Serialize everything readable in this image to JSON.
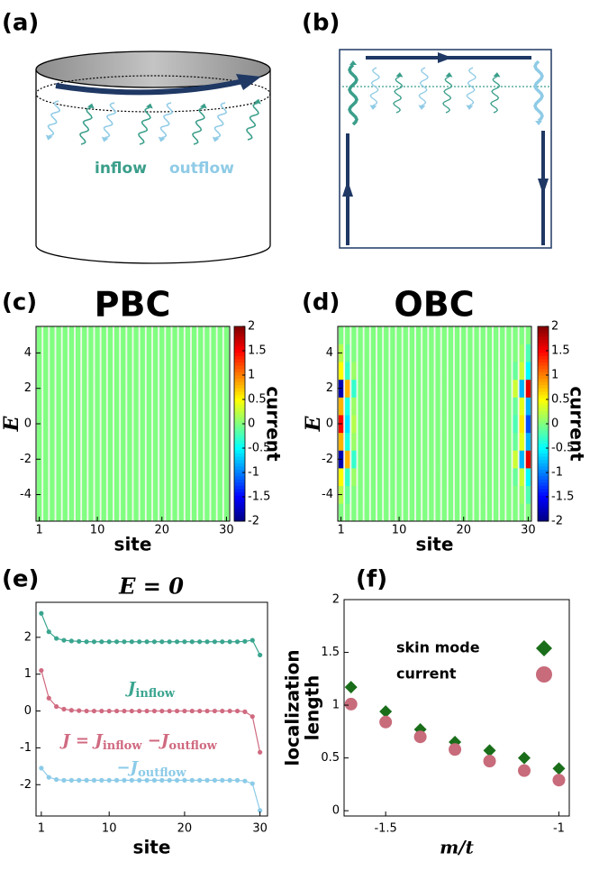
{
  "diagrams": {
    "a": {
      "panel_label": "(a)",
      "inflow": "inflow",
      "outflow": "outflow"
    },
    "b": {
      "panel_label": "(b)"
    }
  },
  "chart_data": [
    {
      "type": "heatmap",
      "panel_label": "(c)",
      "title": "PBC",
      "xlabel": "site",
      "ylabel": "E",
      "colorbar_label": "current",
      "colormap": "jet",
      "x": [
        1,
        2,
        3,
        4,
        5,
        6,
        7,
        8,
        9,
        10,
        11,
        12,
        13,
        14,
        15,
        16,
        17,
        18,
        19,
        20,
        21,
        22,
        23,
        24,
        25,
        26,
        27,
        28,
        29,
        30
      ],
      "y": [
        -5,
        -4,
        -3,
        -2,
        -1,
        0,
        1,
        2,
        3,
        4,
        5
      ],
      "z": [
        [
          0,
          0,
          0,
          0,
          0,
          0,
          0,
          0,
          0,
          0,
          0,
          0,
          0,
          0,
          0,
          0,
          0,
          0,
          0,
          0,
          0,
          0,
          0,
          0,
          0,
          0,
          0,
          0,
          0,
          0
        ],
        [
          0,
          0,
          0,
          0,
          0,
          0,
          0,
          0,
          0,
          0,
          0,
          0,
          0,
          0,
          0,
          0,
          0,
          0,
          0,
          0,
          0,
          0,
          0,
          0,
          0,
          0,
          0,
          0,
          0,
          0
        ],
        [
          0,
          0,
          0,
          0,
          0,
          0,
          0,
          0,
          0,
          0,
          0,
          0,
          0,
          0,
          0,
          0,
          0,
          0,
          0,
          0,
          0,
          0,
          0,
          0,
          0,
          0,
          0,
          0,
          0,
          0
        ],
        [
          0,
          0,
          0,
          0,
          0,
          0,
          0,
          0,
          0,
          0,
          0,
          0,
          0,
          0,
          0,
          0,
          0,
          0,
          0,
          0,
          0,
          0,
          0,
          0,
          0,
          0,
          0,
          0,
          0,
          0
        ],
        [
          0,
          0,
          0,
          0,
          0,
          0,
          0,
          0,
          0,
          0,
          0,
          0,
          0,
          0,
          0,
          0,
          0,
          0,
          0,
          0,
          0,
          0,
          0,
          0,
          0,
          0,
          0,
          0,
          0,
          0
        ],
        [
          0,
          0,
          0,
          0,
          0,
          0,
          0,
          0,
          0,
          0,
          0,
          0,
          0,
          0,
          0,
          0,
          0,
          0,
          0,
          0,
          0,
          0,
          0,
          0,
          0,
          0,
          0,
          0,
          0,
          0
        ],
        [
          0,
          0,
          0,
          0,
          0,
          0,
          0,
          0,
          0,
          0,
          0,
          0,
          0,
          0,
          0,
          0,
          0,
          0,
          0,
          0,
          0,
          0,
          0,
          0,
          0,
          0,
          0,
          0,
          0,
          0
        ],
        [
          0,
          0,
          0,
          0,
          0,
          0,
          0,
          0,
          0,
          0,
          0,
          0,
          0,
          0,
          0,
          0,
          0,
          0,
          0,
          0,
          0,
          0,
          0,
          0,
          0,
          0,
          0,
          0,
          0,
          0
        ],
        [
          0,
          0,
          0,
          0,
          0,
          0,
          0,
          0,
          0,
          0,
          0,
          0,
          0,
          0,
          0,
          0,
          0,
          0,
          0,
          0,
          0,
          0,
          0,
          0,
          0,
          0,
          0,
          0,
          0,
          0
        ],
        [
          0,
          0,
          0,
          0,
          0,
          0,
          0,
          0,
          0,
          0,
          0,
          0,
          0,
          0,
          0,
          0,
          0,
          0,
          0,
          0,
          0,
          0,
          0,
          0,
          0,
          0,
          0,
          0,
          0,
          0
        ],
        [
          0,
          0,
          0,
          0,
          0,
          0,
          0,
          0,
          0,
          0,
          0,
          0,
          0,
          0,
          0,
          0,
          0,
          0,
          0,
          0,
          0,
          0,
          0,
          0,
          0,
          0,
          0,
          0,
          0,
          0
        ]
      ],
      "zlim": [
        -2,
        2
      ],
      "zticks": [
        2,
        1.5,
        1,
        0.5,
        0,
        -0.5,
        -1,
        -1.5,
        -2
      ],
      "xlim": [
        0.5,
        30.5
      ],
      "ylim": [
        -5.5,
        5.5
      ],
      "xticks": [
        1,
        10,
        20,
        30
      ],
      "yticks": [
        -4,
        -2,
        0,
        2,
        4
      ]
    },
    {
      "type": "heatmap",
      "panel_label": "(d)",
      "title": "OBC",
      "xlabel": "site",
      "ylabel": "E",
      "colorbar_label": "current",
      "colormap": "jet",
      "x": [
        1,
        2,
        3,
        4,
        5,
        6,
        7,
        8,
        9,
        10,
        11,
        12,
        13,
        14,
        15,
        16,
        17,
        18,
        19,
        20,
        21,
        22,
        23,
        24,
        25,
        26,
        27,
        28,
        29,
        30
      ],
      "y": [
        -5,
        -4,
        -3,
        -2,
        -1,
        0,
        1,
        2,
        3,
        4,
        5
      ],
      "z": [
        [
          0,
          0,
          0,
          0,
          0,
          0,
          0,
          0,
          0,
          0,
          0,
          0,
          0,
          0,
          0,
          0,
          0,
          0,
          0,
          0,
          0,
          0,
          0,
          0,
          0,
          0,
          0,
          0,
          0,
          0
        ],
        [
          0.2,
          -0.1,
          0,
          0,
          0,
          0,
          0,
          0,
          0,
          0,
          0,
          0,
          0,
          0,
          0,
          0,
          0,
          0,
          0,
          0,
          0,
          0,
          0,
          0,
          0,
          0,
          0,
          0,
          0.1,
          -0.2
        ],
        [
          0.5,
          -0.3,
          0.1,
          0,
          0,
          0,
          0,
          0,
          0,
          0,
          0,
          0,
          0,
          0,
          0,
          0,
          0,
          0,
          0,
          0,
          0,
          0,
          0,
          0,
          0,
          0,
          0,
          -0.1,
          0.3,
          -0.5
        ],
        [
          -1.8,
          0.8,
          -0.3,
          0,
          0,
          0,
          0,
          0,
          0,
          0,
          0,
          0,
          0,
          0,
          0,
          0,
          0,
          0,
          0,
          0,
          0,
          0,
          0,
          0,
          0,
          0,
          0,
          0.3,
          -0.8,
          1.6
        ],
        [
          0.8,
          -0.4,
          0.1,
          0,
          0,
          0,
          0,
          0,
          0,
          0,
          0,
          0,
          0,
          0,
          0,
          0,
          0,
          0,
          0,
          0,
          0,
          0,
          0,
          0,
          0,
          0,
          0,
          -0.1,
          0.4,
          -0.8
        ],
        [
          1.5,
          -0.6,
          0.2,
          0,
          0,
          0,
          0,
          0,
          0,
          0,
          0,
          0,
          0,
          0,
          0,
          0,
          0,
          0,
          0,
          0,
          0,
          0,
          0,
          0,
          0,
          0,
          0,
          -0.2,
          0.6,
          -1.2
        ],
        [
          0.8,
          -0.4,
          0.1,
          0,
          0,
          0,
          0,
          0,
          0,
          0,
          0,
          0,
          0,
          0,
          0,
          0,
          0,
          0,
          0,
          0,
          0,
          0,
          0,
          0,
          0,
          0,
          0,
          -0.1,
          0.4,
          -0.8
        ],
        [
          -1.8,
          0.8,
          -0.3,
          0,
          0,
          0,
          0,
          0,
          0,
          0,
          0,
          0,
          0,
          0,
          0,
          0,
          0,
          0,
          0,
          0,
          0,
          0,
          0,
          0,
          0,
          0,
          0,
          0.3,
          -0.8,
          1.6
        ],
        [
          0.5,
          -0.3,
          0.1,
          0,
          0,
          0,
          0,
          0,
          0,
          0,
          0,
          0,
          0,
          0,
          0,
          0,
          0,
          0,
          0,
          0,
          0,
          0,
          0,
          0,
          0,
          0,
          0,
          -0.1,
          0.3,
          -0.5
        ],
        [
          0.2,
          -0.1,
          0,
          0,
          0,
          0,
          0,
          0,
          0,
          0,
          0,
          0,
          0,
          0,
          0,
          0,
          0,
          0,
          0,
          0,
          0,
          0,
          0,
          0,
          0,
          0,
          0,
          0,
          0.1,
          -0.2
        ],
        [
          0,
          0,
          0,
          0,
          0,
          0,
          0,
          0,
          0,
          0,
          0,
          0,
          0,
          0,
          0,
          0,
          0,
          0,
          0,
          0,
          0,
          0,
          0,
          0,
          0,
          0,
          0,
          0,
          0,
          0
        ]
      ],
      "zlim": [
        -2,
        2
      ],
      "zticks": [
        2,
        1.5,
        1,
        0.5,
        0,
        -0.5,
        -1,
        -1.5,
        -2
      ],
      "xlim": [
        0.5,
        30.5
      ],
      "ylim": [
        -5.5,
        5.5
      ],
      "xticks": [
        1,
        10,
        20,
        30
      ],
      "yticks": [
        -4,
        -2,
        0,
        2,
        4
      ]
    },
    {
      "type": "line",
      "panel_label": "(e)",
      "title": "E = 0",
      "xlabel": "site",
      "x": [
        1,
        2,
        3,
        4,
        5,
        6,
        7,
        8,
        9,
        10,
        11,
        12,
        13,
        14,
        15,
        16,
        17,
        18,
        19,
        20,
        21,
        22,
        23,
        24,
        25,
        26,
        27,
        28,
        29,
        30
      ],
      "series": [
        {
          "color": "#3aa58f",
          "label": [
            {
              "text": "J"
            },
            {
              "sub": "inflow"
            }
          ],
          "values": [
            2.65,
            2.15,
            1.97,
            1.92,
            1.9,
            1.89,
            1.88,
            1.88,
            1.88,
            1.88,
            1.88,
            1.88,
            1.88,
            1.88,
            1.88,
            1.88,
            1.88,
            1.88,
            1.88,
            1.88,
            1.88,
            1.88,
            1.88,
            1.88,
            1.88,
            1.88,
            1.88,
            1.89,
            1.92,
            1.52
          ]
        },
        {
          "color": "#d06a80",
          "label": [
            {
              "text": "J"
            },
            {
              "text": " = "
            },
            {
              "text": "J"
            },
            {
              "sub": "inflow"
            },
            {
              "text": " −"
            },
            {
              "text": "J"
            },
            {
              "sub": "outflow"
            }
          ],
          "values": [
            1.1,
            0.35,
            0.12,
            0.05,
            0.02,
            0.01,
            0,
            0,
            0,
            0,
            0,
            0,
            0,
            0,
            0,
            0,
            0,
            0,
            0,
            0,
            0,
            0,
            0,
            0,
            0,
            0,
            0,
            -0.02,
            -0.15,
            -1.12
          ]
        },
        {
          "color": "#8ccbe8",
          "label": [
            {
              "text": "−"
            },
            {
              "text": "J"
            },
            {
              "sub": "outflow"
            }
          ],
          "values": [
            -1.55,
            -1.8,
            -1.86,
            -1.88,
            -1.88,
            -1.88,
            -1.88,
            -1.88,
            -1.88,
            -1.88,
            -1.88,
            -1.88,
            -1.88,
            -1.88,
            -1.88,
            -1.88,
            -1.88,
            -1.88,
            -1.88,
            -1.88,
            -1.88,
            -1.88,
            -1.88,
            -1.88,
            -1.88,
            -1.88,
            -1.88,
            -1.9,
            -1.97,
            -2.7
          ]
        }
      ],
      "xlim": [
        0.3,
        31
      ],
      "ylim": [
        -2.85,
        2.95
      ],
      "xticks": [
        1,
        10,
        20,
        30
      ],
      "yticks": [
        -2,
        -1,
        0,
        1,
        2
      ]
    },
    {
      "type": "scatter",
      "panel_label": "(f)",
      "xlabel": "m/t",
      "ylabel": [
        "localization",
        "length"
      ],
      "x": [
        -1.6,
        -1.5,
        -1.4,
        -1.3,
        -1.2,
        -1.1,
        -1.0
      ],
      "series": [
        {
          "name": "skin mode",
          "color": "#1a6e1a",
          "marker": "diamond",
          "values": [
            1.17,
            0.94,
            0.77,
            0.65,
            0.57,
            0.5,
            0.4
          ]
        },
        {
          "name": "current",
          "color": "#c86b7b",
          "marker": "circle",
          "values": [
            1.01,
            0.84,
            0.7,
            0.58,
            0.47,
            0.38,
            0.29
          ]
        }
      ],
      "legend": "upper right",
      "xlim": [
        -1.62,
        -0.97
      ],
      "ylim": [
        -0.05,
        2
      ],
      "xticks": [
        -1.5,
        -1
      ],
      "yticks": [
        0,
        0.5,
        1,
        1.5,
        2
      ]
    }
  ]
}
